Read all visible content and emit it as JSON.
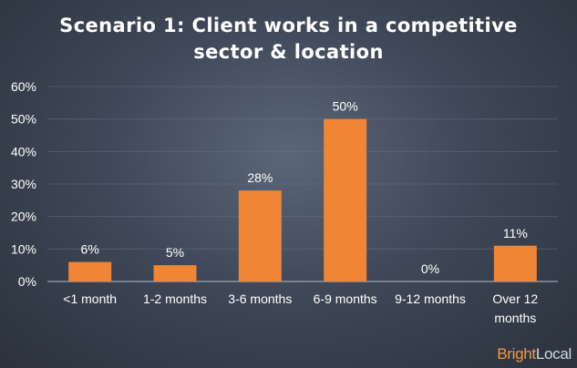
{
  "title_line1": "Scenario 1: Client works in a competitive",
  "title_line2": "sector & location",
  "logo": {
    "part1": "Bright",
    "part2": "Local"
  },
  "colors": {
    "bar": "#ef8535",
    "text": "#ffffff",
    "grid": "#6d7686"
  },
  "chart_data": {
    "type": "bar",
    "title": "Scenario 1: Client works in a competitive sector & location",
    "categories": [
      "<1 month",
      "1-2 months",
      "3-6 months",
      "6-9 months",
      "9-12 months",
      [
        "Over 12",
        "months"
      ]
    ],
    "values": [
      6,
      5,
      28,
      50,
      0,
      11
    ],
    "value_labels": [
      "6%",
      "5%",
      "28%",
      "50%",
      "0%",
      "11%"
    ],
    "ylim": [
      0,
      60
    ],
    "y_ticks": [
      "0%",
      "10%",
      "20%",
      "30%",
      "40%",
      "50%",
      "60%"
    ],
    "y_tick_values": [
      0,
      10,
      20,
      30,
      40,
      50,
      60
    ],
    "xlabel": "",
    "ylabel": "",
    "grid": true,
    "legend": "none"
  }
}
